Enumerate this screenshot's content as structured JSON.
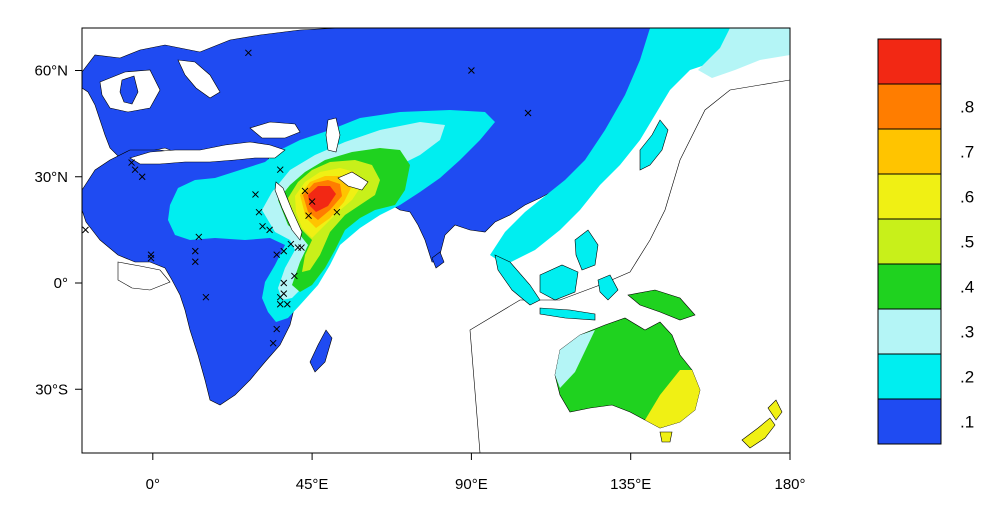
{
  "map": {
    "x_axis": {
      "labels": [
        "0°",
        "45°E",
        "90°E",
        "135°E",
        "180°"
      ],
      "values": [
        0,
        45,
        90,
        135,
        180
      ],
      "range": [
        -20,
        180
      ]
    },
    "y_axis": {
      "labels": [
        "60°N",
        "30°N",
        "0°",
        "30°S"
      ],
      "values": [
        60,
        30,
        0,
        -30
      ],
      "range": [
        -48,
        72
      ]
    },
    "levels": [
      {
        "label": ".1",
        "color": "#1f4bf2"
      },
      {
        "label": ".2",
        "color": "#00eef0"
      },
      {
        "label": ".3",
        "color": "#b4f5f6"
      },
      {
        "label": ".4",
        "color": "#1fd21f"
      },
      {
        "label": ".5",
        "color": "#c8f01a"
      },
      {
        "label": ".6",
        "color": "#f0f014"
      },
      {
        "label": ".7",
        "color": "#ffc400"
      },
      {
        "label": ".8",
        "color": "#ff7d00"
      },
      {
        "label": "",
        "color": "#f22814"
      }
    ],
    "observation_sites": [
      [
        -19,
        15
      ],
      [
        -6,
        34
      ],
      [
        -5,
        32
      ],
      [
        -3,
        30
      ],
      [
        -0.5,
        8
      ],
      [
        -0.5,
        7
      ],
      [
        12,
        6
      ],
      [
        12,
        9
      ],
      [
        13,
        13
      ],
      [
        15,
        -4
      ],
      [
        27,
        65
      ],
      [
        29,
        25
      ],
      [
        30,
        20
      ],
      [
        31,
        16
      ],
      [
        33,
        15
      ],
      [
        34,
        -17
      ],
      [
        35,
        8
      ],
      [
        35,
        -13
      ],
      [
        36,
        32
      ],
      [
        36,
        -4
      ],
      [
        37,
        0
      ],
      [
        37,
        9
      ],
      [
        38,
        -6
      ],
      [
        39,
        11
      ],
      [
        40,
        2
      ],
      [
        41,
        10
      ],
      [
        42,
        10
      ],
      [
        43,
        26
      ],
      [
        44,
        19
      ],
      [
        45,
        23
      ],
      [
        52,
        20
      ],
      [
        90,
        60
      ],
      [
        106,
        48
      ],
      [
        36,
        -6
      ],
      [
        37,
        -3
      ]
    ]
  }
}
